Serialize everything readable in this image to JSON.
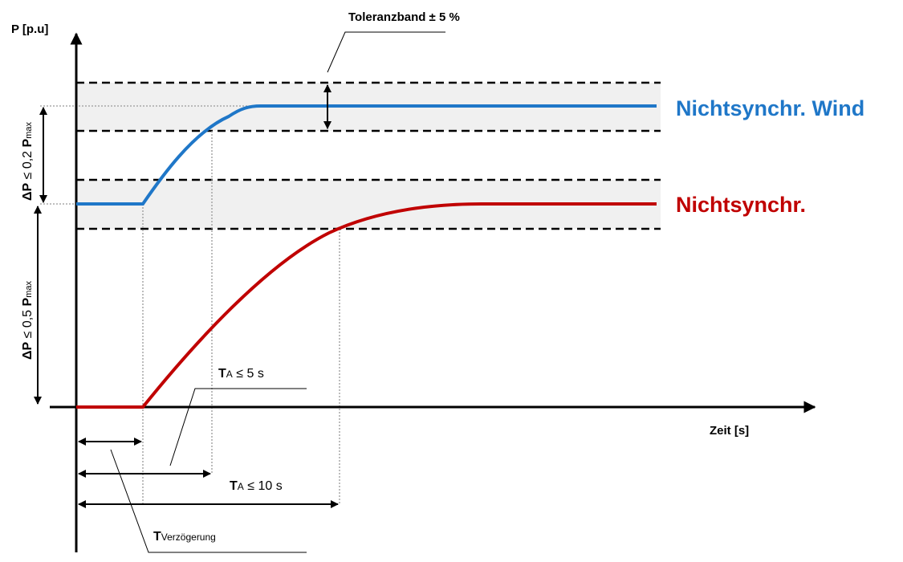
{
  "labels": {
    "y_axis": "P [p.u]",
    "x_axis": "Zeit [s]",
    "tolerance": "Toleranzband ± 5 %",
    "series_wind": "Nichtsynchr. Wind",
    "series_other": "Nichtsynchr.",
    "delta_upper": {
      "prefix": "ΔP",
      "mid": " ≤ 0,2 ",
      "bold": "P",
      "sub": "max"
    },
    "delta_lower": {
      "prefix": "ΔP",
      "mid": " ≤ 0,5 ",
      "bold": "P",
      "sub": "max"
    },
    "ta5": {
      "bold": "T",
      "sub": "A",
      "rest": " ≤ 5 s"
    },
    "ta10": {
      "bold": "T",
      "sub": "A",
      "rest": " ≤ 10 s"
    },
    "tdelay": {
      "bold": "T",
      "sub": "Verzögerung"
    }
  },
  "colors": {
    "wind": "#1f77c8",
    "other": "#c00000",
    "band_fill": "#f0f0f0",
    "axis": "#000000",
    "guide": "#999999"
  }
}
